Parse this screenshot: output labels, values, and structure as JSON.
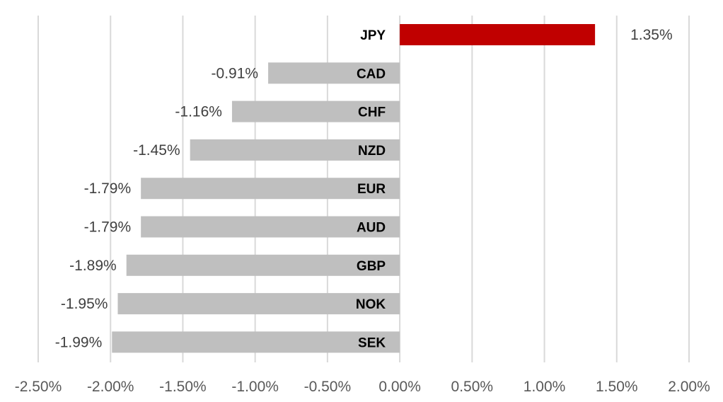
{
  "chart_data": {
    "type": "bar",
    "orientation": "horizontal",
    "categories": [
      "JPY",
      "CAD",
      "CHF",
      "NZD",
      "EUR",
      "AUD",
      "GBP",
      "NOK",
      "SEK"
    ],
    "values": [
      1.35,
      -0.91,
      -1.16,
      -1.45,
      -1.79,
      -1.79,
      -1.89,
      -1.95,
      -1.99
    ],
    "data_labels": [
      "1.35%",
      "-0.91%",
      "-1.16%",
      "-1.45%",
      "-1.79%",
      "-1.79%",
      "-1.89%",
      "-1.95%",
      "-1.99%"
    ],
    "x_ticks": [
      -2.5,
      -2.0,
      -1.5,
      -1.0,
      -0.5,
      0.0,
      0.5,
      1.0,
      1.5,
      2.0
    ],
    "x_tick_labels": [
      "-2.50%",
      "-2.00%",
      "-1.50%",
      "-1.00%",
      "-0.50%",
      "0.00%",
      "0.50%",
      "1.00%",
      "1.50%",
      "2.00%"
    ],
    "xlim": [
      -2.5,
      2.0
    ],
    "grid": true,
    "legend": "none",
    "title": "",
    "xlabel": "",
    "ylabel": "",
    "colors": {
      "positive": "#c00000",
      "negative": "#bfbfbf",
      "grid": "#d9d9d9"
    }
  }
}
